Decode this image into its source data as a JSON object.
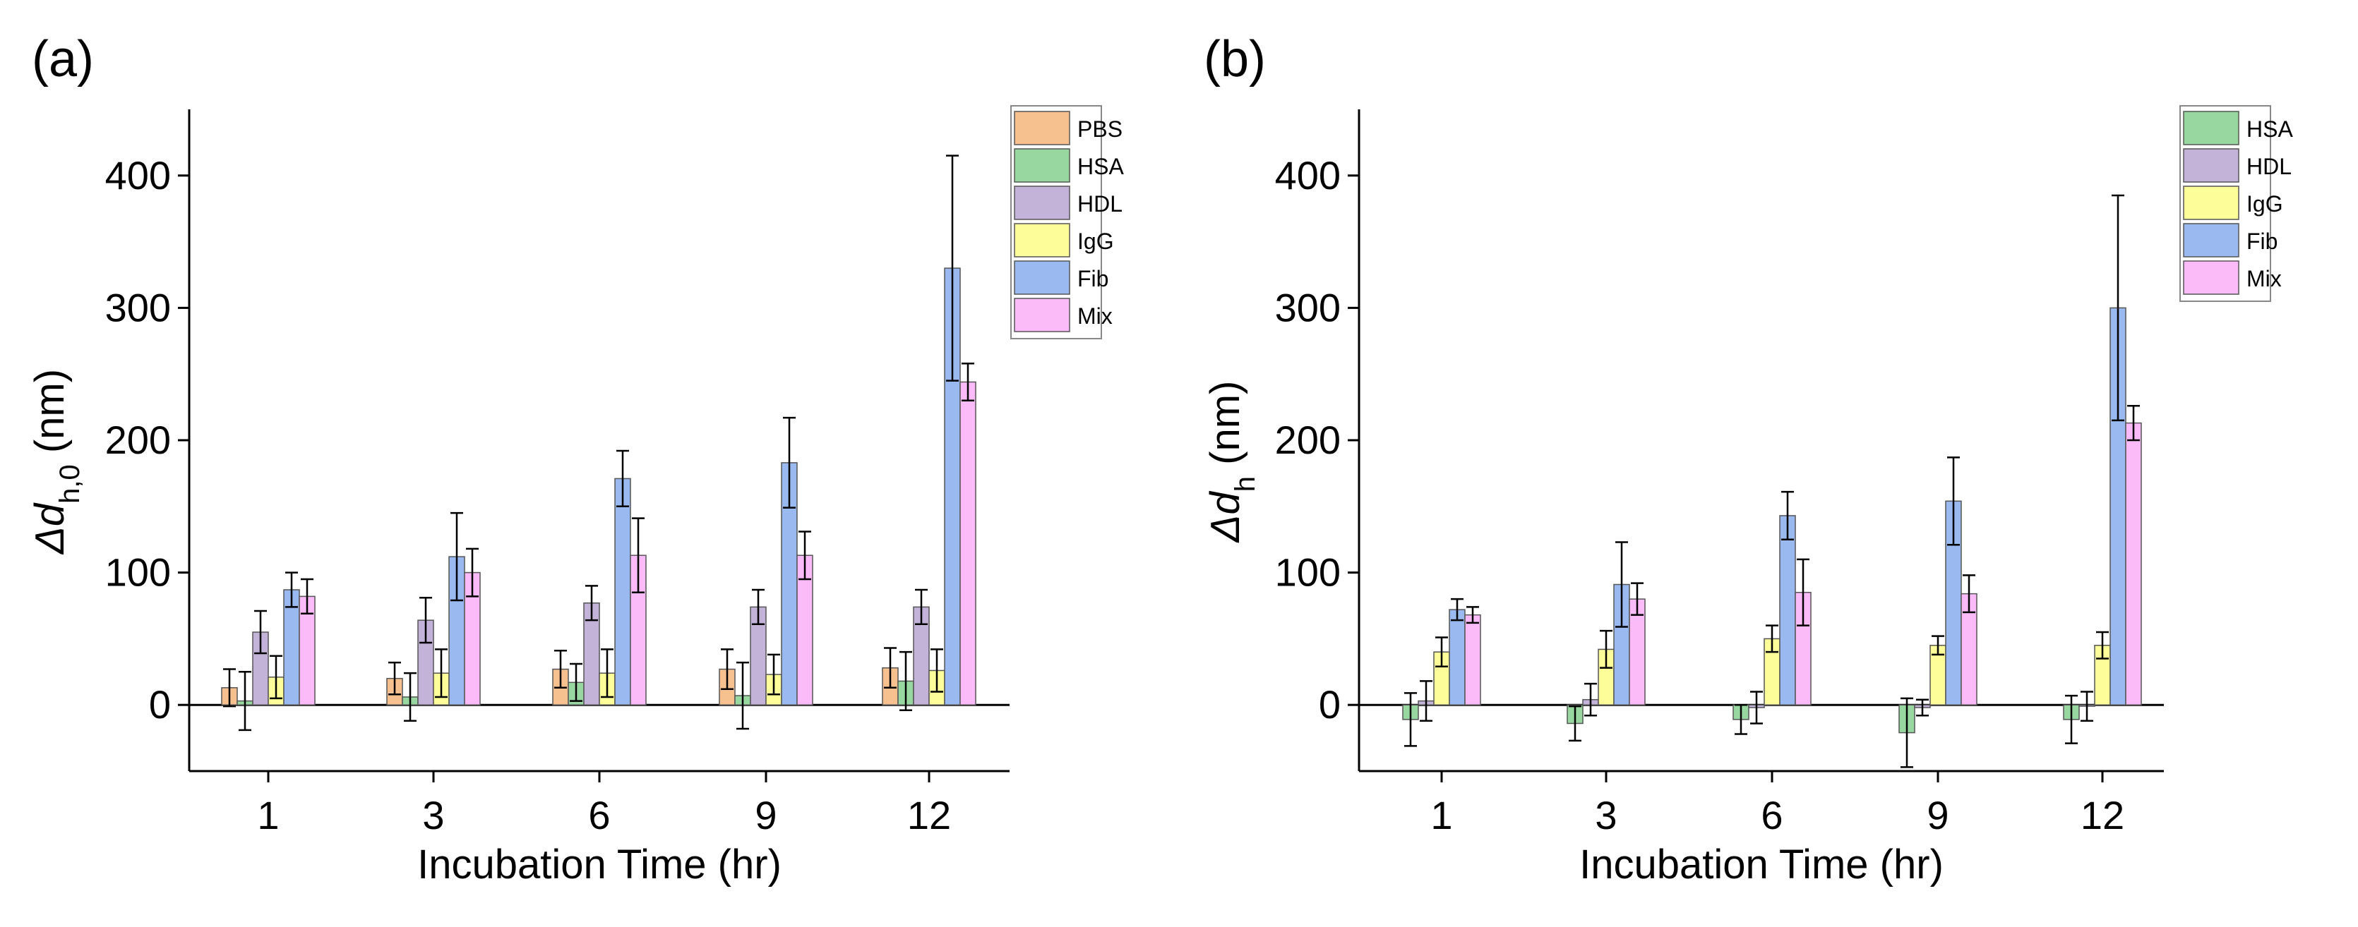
{
  "chart_data": [
    {
      "type": "bar",
      "panel_label": "(a)",
      "xlabel": "Incubation Time (hr)",
      "ylabel_main": "Δd",
      "ylabel_sub": "h,0",
      "ylabel_unit": " (nm)",
      "ylim": [
        -50,
        450
      ],
      "yticks": [
        0,
        100,
        200,
        300,
        400
      ],
      "categories": [
        "1",
        "3",
        "6",
        "9",
        "12"
      ],
      "legend_position": "top-right",
      "series": [
        {
          "name": "PBS",
          "color": "#f7c08f",
          "values": [
            13,
            20,
            27,
            27,
            28
          ],
          "errors": [
            14,
            12,
            14,
            15,
            15
          ]
        },
        {
          "name": "HSA",
          "color": "#98d8a0",
          "values": [
            3,
            6,
            17,
            7,
            18
          ],
          "errors": [
            22,
            18,
            14,
            25,
            22
          ]
        },
        {
          "name": "HDL",
          "color": "#c3b3d9",
          "values": [
            55,
            64,
            77,
            74,
            74
          ],
          "errors": [
            16,
            17,
            13,
            13,
            13
          ]
        },
        {
          "name": "IgG",
          "color": "#fdfd99",
          "values": [
            21,
            24,
            24,
            23,
            26
          ],
          "errors": [
            16,
            18,
            18,
            15,
            16
          ]
        },
        {
          "name": "Fib",
          "color": "#99b9f0",
          "values": [
            87,
            112,
            171,
            183,
            330
          ],
          "errors": [
            13,
            33,
            21,
            34,
            85
          ]
        },
        {
          "name": "Mix",
          "color": "#fbbaf8",
          "values": [
            82,
            100,
            113,
            113,
            244
          ],
          "errors": [
            13,
            18,
            28,
            18,
            14
          ]
        }
      ]
    },
    {
      "type": "bar",
      "panel_label": "(b)",
      "xlabel": "Incubation Time (hr)",
      "ylabel_main": "Δd",
      "ylabel_sub": "h",
      "ylabel_unit": " (nm)",
      "ylim": [
        -50,
        450
      ],
      "yticks": [
        0,
        100,
        200,
        300,
        400
      ],
      "categories": [
        "1",
        "3",
        "6",
        "9",
        "12"
      ],
      "legend_position": "top-right",
      "series": [
        {
          "name": "HSA",
          "color": "#98d8a0",
          "values": [
            -11,
            -14,
            -11,
            -21,
            -11
          ],
          "errors": [
            20,
            13,
            11,
            26,
            18
          ]
        },
        {
          "name": "HDL",
          "color": "#c3b3d9",
          "values": [
            3,
            4,
            -2,
            -2,
            -1
          ],
          "errors": [
            15,
            12,
            12,
            6,
            11
          ]
        },
        {
          "name": "IgG",
          "color": "#fdfd99",
          "values": [
            40,
            42,
            50,
            45,
            45
          ],
          "errors": [
            11,
            14,
            10,
            7,
            10
          ]
        },
        {
          "name": "Fib",
          "color": "#99b9f0",
          "values": [
            72,
            91,
            143,
            154,
            300
          ],
          "errors": [
            8,
            32,
            18,
            33,
            85
          ]
        },
        {
          "name": "Mix",
          "color": "#fbbaf8",
          "values": [
            68,
            80,
            85,
            84,
            213
          ],
          "errors": [
            6,
            12,
            25,
            14,
            13
          ]
        }
      ]
    }
  ]
}
